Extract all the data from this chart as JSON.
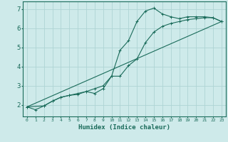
{
  "xlabel": "Humidex (Indice chaleur)",
  "ylabel": "",
  "bg_color": "#ceeaea",
  "line_color": "#1a6b5a",
  "grid_color": "#aed4d4",
  "xlim": [
    -0.5,
    23.5
  ],
  "ylim": [
    1.4,
    7.4
  ],
  "xticks": [
    0,
    1,
    2,
    3,
    4,
    5,
    6,
    7,
    8,
    9,
    10,
    11,
    12,
    13,
    14,
    15,
    16,
    17,
    18,
    19,
    20,
    21,
    22,
    23
  ],
  "yticks": [
    2,
    3,
    4,
    5,
    6,
    7
  ],
  "line1_x": [
    0,
    1,
    2,
    3,
    4,
    5,
    6,
    7,
    8,
    9,
    10,
    11,
    12,
    13,
    14,
    15,
    16,
    17,
    18,
    19,
    20,
    21,
    22,
    23
  ],
  "line1_y": [
    1.9,
    1.75,
    1.95,
    2.2,
    2.4,
    2.5,
    2.6,
    2.7,
    2.85,
    3.0,
    3.5,
    4.85,
    5.35,
    6.35,
    6.9,
    7.05,
    6.75,
    6.6,
    6.5,
    6.6,
    6.6,
    6.6,
    6.55,
    6.35
  ],
  "line2_x": [
    0,
    2,
    3,
    4,
    5,
    6,
    7,
    8,
    9,
    10,
    11,
    12,
    13,
    14,
    15,
    16,
    17,
    18,
    19,
    20,
    21,
    22,
    23
  ],
  "line2_y": [
    1.9,
    1.95,
    2.2,
    2.4,
    2.5,
    2.55,
    2.7,
    2.6,
    2.85,
    3.5,
    3.5,
    4.05,
    4.4,
    5.25,
    5.8,
    6.1,
    6.25,
    6.35,
    6.45,
    6.5,
    6.55,
    6.55,
    6.35
  ],
  "line3_x": [
    0,
    23
  ],
  "line3_y": [
    1.9,
    6.35
  ]
}
